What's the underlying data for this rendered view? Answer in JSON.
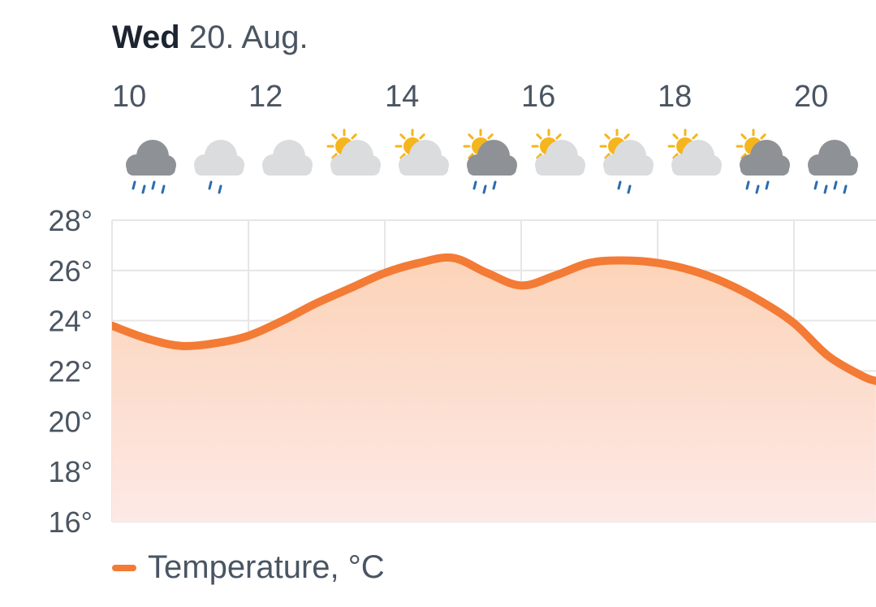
{
  "header": {
    "day": "Wed",
    "date": "20. Aug."
  },
  "colors": {
    "line": "#f37b35",
    "fill_top": "#fcd3b8",
    "fill_bottom": "#fde9e6",
    "grid": "#e6e6e6",
    "cloud_light": "#dadcde",
    "cloud_dark": "#8e9296",
    "sun": "#f5b51d",
    "rain": "#2b6cb0"
  },
  "icons": [
    {
      "hour": 10.5,
      "name": "heavy-rain-dark-cloud-icon",
      "cloud": "dark",
      "sun": false,
      "rain": 4
    },
    {
      "hour": 11.5,
      "name": "light-rain-cloud-icon",
      "cloud": "light",
      "sun": false,
      "rain": 2
    },
    {
      "hour": 12.5,
      "name": "cloud-icon",
      "cloud": "light",
      "sun": false,
      "rain": 0
    },
    {
      "hour": 13.5,
      "name": "partly-sunny-icon",
      "cloud": "light",
      "sun": true,
      "rain": 0
    },
    {
      "hour": 14.5,
      "name": "partly-sunny-icon",
      "cloud": "light",
      "sun": true,
      "rain": 0
    },
    {
      "hour": 15.5,
      "name": "sun-rain-dark-cloud-icon",
      "cloud": "dark",
      "sun": true,
      "rain": 3
    },
    {
      "hour": 16.5,
      "name": "partly-sunny-icon",
      "cloud": "light",
      "sun": true,
      "rain": 0
    },
    {
      "hour": 17.5,
      "name": "sun-light-rain-icon",
      "cloud": "light",
      "sun": true,
      "rain": 2
    },
    {
      "hour": 18.5,
      "name": "partly-sunny-icon",
      "cloud": "light",
      "sun": true,
      "rain": 0
    },
    {
      "hour": 19.5,
      "name": "sun-rain-dark-cloud-icon",
      "cloud": "dark",
      "sun": true,
      "rain": 3
    },
    {
      "hour": 20.5,
      "name": "heavy-rain-dark-cloud-icon",
      "cloud": "dark",
      "sun": false,
      "rain": 4
    },
    {
      "hour": 21.5,
      "name": "cloud-icon",
      "cloud": "light",
      "sun": false,
      "rain": 0
    }
  ],
  "chart_data": {
    "type": "area",
    "title": "",
    "xlabel": "",
    "ylabel": "",
    "x_ticks": [
      {
        "value": 10,
        "label": "10"
      },
      {
        "value": 12,
        "label": "12"
      },
      {
        "value": 14,
        "label": "14"
      },
      {
        "value": 16,
        "label": "16"
      },
      {
        "value": 18,
        "label": "18"
      },
      {
        "value": 20,
        "label": "20"
      }
    ],
    "y_ticks": [
      {
        "value": 16,
        "label": "16°"
      },
      {
        "value": 18,
        "label": "18°"
      },
      {
        "value": 20,
        "label": "20°"
      },
      {
        "value": 22,
        "label": "22°"
      },
      {
        "value": 24,
        "label": "24°"
      },
      {
        "value": 26,
        "label": "26°"
      },
      {
        "value": 28,
        "label": "28°"
      }
    ],
    "xlim": [
      10,
      21.2
    ],
    "ylim": [
      16,
      28
    ],
    "grid": true,
    "legend": "bottom-left",
    "series": [
      {
        "name": "Temperature, °C",
        "x": [
          10,
          10.5,
          11,
          11.5,
          12,
          12.5,
          13,
          13.5,
          14,
          14.5,
          15,
          15.5,
          16,
          16.5,
          17,
          17.5,
          18,
          18.5,
          19,
          19.5,
          20,
          20.5,
          21,
          21.2
        ],
        "y": [
          23.8,
          23.3,
          23.0,
          23.1,
          23.4,
          24.0,
          24.7,
          25.3,
          25.9,
          26.3,
          26.5,
          25.9,
          25.4,
          25.8,
          26.3,
          26.4,
          26.3,
          26.0,
          25.5,
          24.8,
          23.9,
          22.6,
          21.8,
          21.6
        ]
      }
    ]
  }
}
